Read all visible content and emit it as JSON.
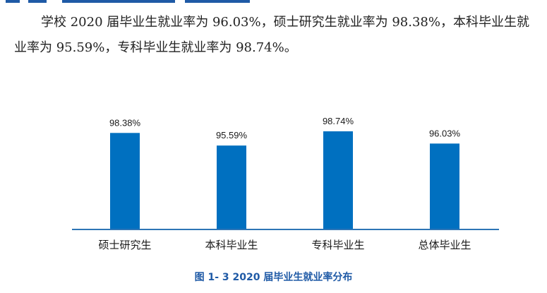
{
  "paragraph": {
    "text": "学校 2020 届毕业生就业率为 96.03%，硕士研究生就业率为 98.38%，本科毕业生就业率为 95.59%，专科毕业生就业率为 98.74%。"
  },
  "colors": {
    "bar": "#0070c0",
    "axis": "#2e75b6",
    "caption": "#1f5aa6",
    "heading": "#1f5aa6"
  },
  "chart_data": {
    "type": "bar",
    "title": "图 1- 3  2020 届毕业生就业率分布",
    "categories": [
      "硕士研究生",
      "本科毕业生",
      "专科毕业生",
      "总体毕业生"
    ],
    "values": [
      98.38,
      95.59,
      98.74,
      96.03
    ],
    "value_labels": [
      "98.38%",
      "95.59%",
      "98.74%",
      "96.03%"
    ],
    "ylim": [
      0,
      100
    ],
    "grid": false,
    "legend": "none",
    "xlabel": "",
    "ylabel": ""
  }
}
